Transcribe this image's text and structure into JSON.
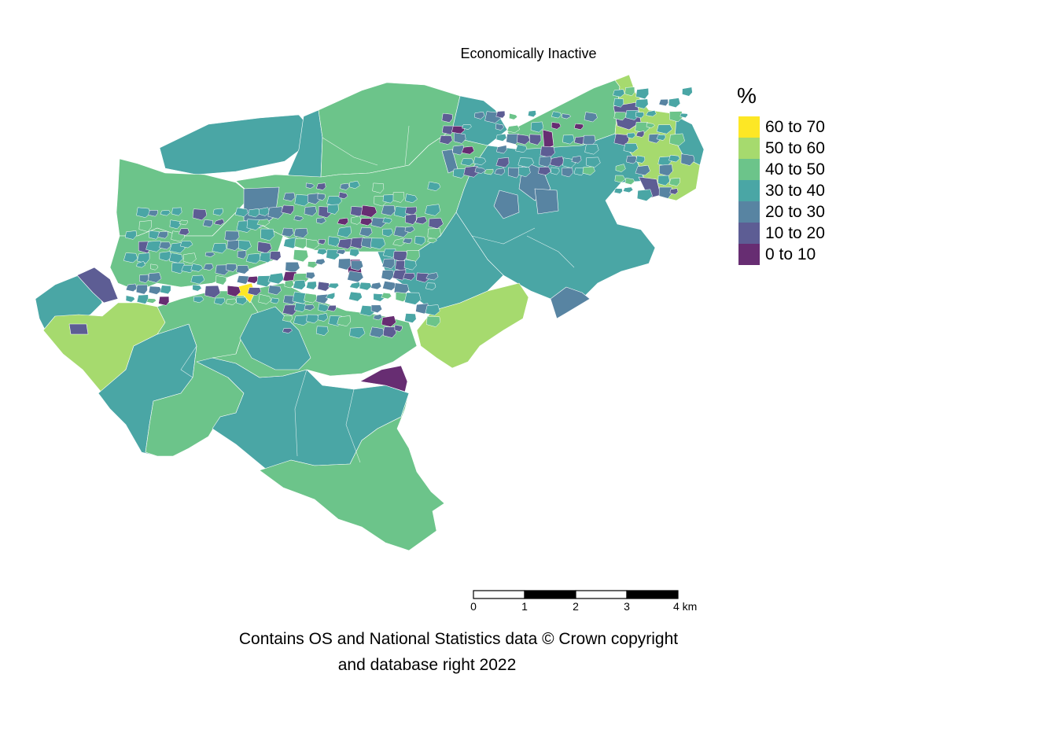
{
  "map": {
    "title": "Economically Inactive"
  },
  "legend": {
    "title": "%",
    "items": [
      {
        "label": "60 to 70",
        "color": "#FDE725"
      },
      {
        "label": "50 to 60",
        "color": "#A6DA6E"
      },
      {
        "label": "40 to 50",
        "color": "#6CC48A"
      },
      {
        "label": "30 to 40",
        "color": "#4AA6A5"
      },
      {
        "label": "20 to 30",
        "color": "#5884A2"
      },
      {
        "label": "10 to 20",
        "color": "#5D5D94"
      },
      {
        "label": "0 to 10",
        "color": "#672D72"
      }
    ]
  },
  "scalebar": {
    "ticks": [
      "0",
      "1",
      "2",
      "3",
      "4 km"
    ]
  },
  "credit": {
    "line1": "Contains OS and National Statistics data © Crown copyright",
    "line2": "and database right 2022"
  }
}
